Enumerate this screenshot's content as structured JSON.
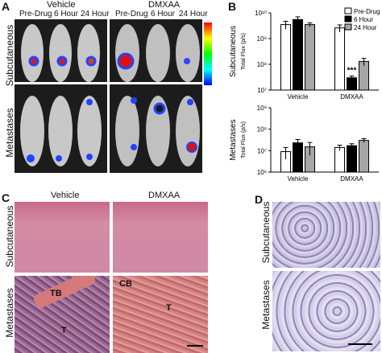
{
  "panels": {
    "a": {
      "letter": "A",
      "vehicle": "Vehicle",
      "dmxaa": "DMXAA",
      "timepoints": [
        "Pre-Drug",
        "6 Hour",
        "24 Hour",
        "Pre-Drug",
        "6 Hour",
        "24 Hour"
      ],
      "row_labels": [
        "Subcutaneous",
        "Metastases"
      ]
    },
    "b": {
      "letter": "B"
    },
    "c": {
      "letter": "C",
      "vehicle": "Vehicle",
      "dmxaa": "DMXAA",
      "row_labels": [
        "Subcutaneous",
        "Metastases"
      ],
      "annotations": [
        "TB",
        "T",
        "CB",
        "T"
      ]
    },
    "d": {
      "letter": "D",
      "row_labels": [
        "Subcutaneous",
        "Metastases"
      ]
    }
  },
  "chart_data": [
    {
      "type": "bar",
      "title": "",
      "ylabel": "Subcutaneous",
      "ylabel2": "Total Flux (p/s)",
      "yscale": "log",
      "ylim": [
        10000000,
        10000000000
      ],
      "yticks": [
        "10⁷",
        "10⁸",
        "10⁹",
        "10¹⁰"
      ],
      "categories": [
        "Vehicle",
        "DMXAA"
      ],
      "series": [
        {
          "name": "Pre-Drug",
          "values": [
            3500000000,
            2600000000
          ],
          "errors": [
            1200000000,
            800000000
          ],
          "color": "#ffffff"
        },
        {
          "name": "6 Hour",
          "values": [
            5500000000,
            30000000
          ],
          "errors": [
            1500000000,
            5000000
          ],
          "color": "#000000"
        },
        {
          "name": "24 Hour",
          "values": [
            3500000000,
            130000000
          ],
          "errors": [
            600000000,
            40000000
          ],
          "color": "#a6a6a6"
        }
      ],
      "annotation": "***",
      "legend": "top-right"
    },
    {
      "type": "bar",
      "title": "",
      "ylabel": "Metastases",
      "ylabel2": "Total Flux (p/s)",
      "yscale": "log",
      "ylim": [
        1000000,
        1000000000
      ],
      "yticks": [
        "10⁶",
        "10⁷",
        "10⁸",
        "10⁹"
      ],
      "categories": [
        "Vehicle",
        "DMXAA"
      ],
      "series": [
        {
          "name": "Pre-Drug",
          "values": [
            9000000,
            14000000
          ],
          "errors": [
            5000000,
            4000000
          ],
          "color": "#ffffff"
        },
        {
          "name": "6 Hour",
          "values": [
            23000000,
            17000000
          ],
          "errors": [
            10000000,
            4000000
          ],
          "color": "#000000"
        },
        {
          "name": "24 Hour",
          "values": [
            15000000,
            30000000
          ],
          "errors": [
            9000000,
            6000000
          ],
          "color": "#a6a6a6"
        }
      ]
    }
  ]
}
